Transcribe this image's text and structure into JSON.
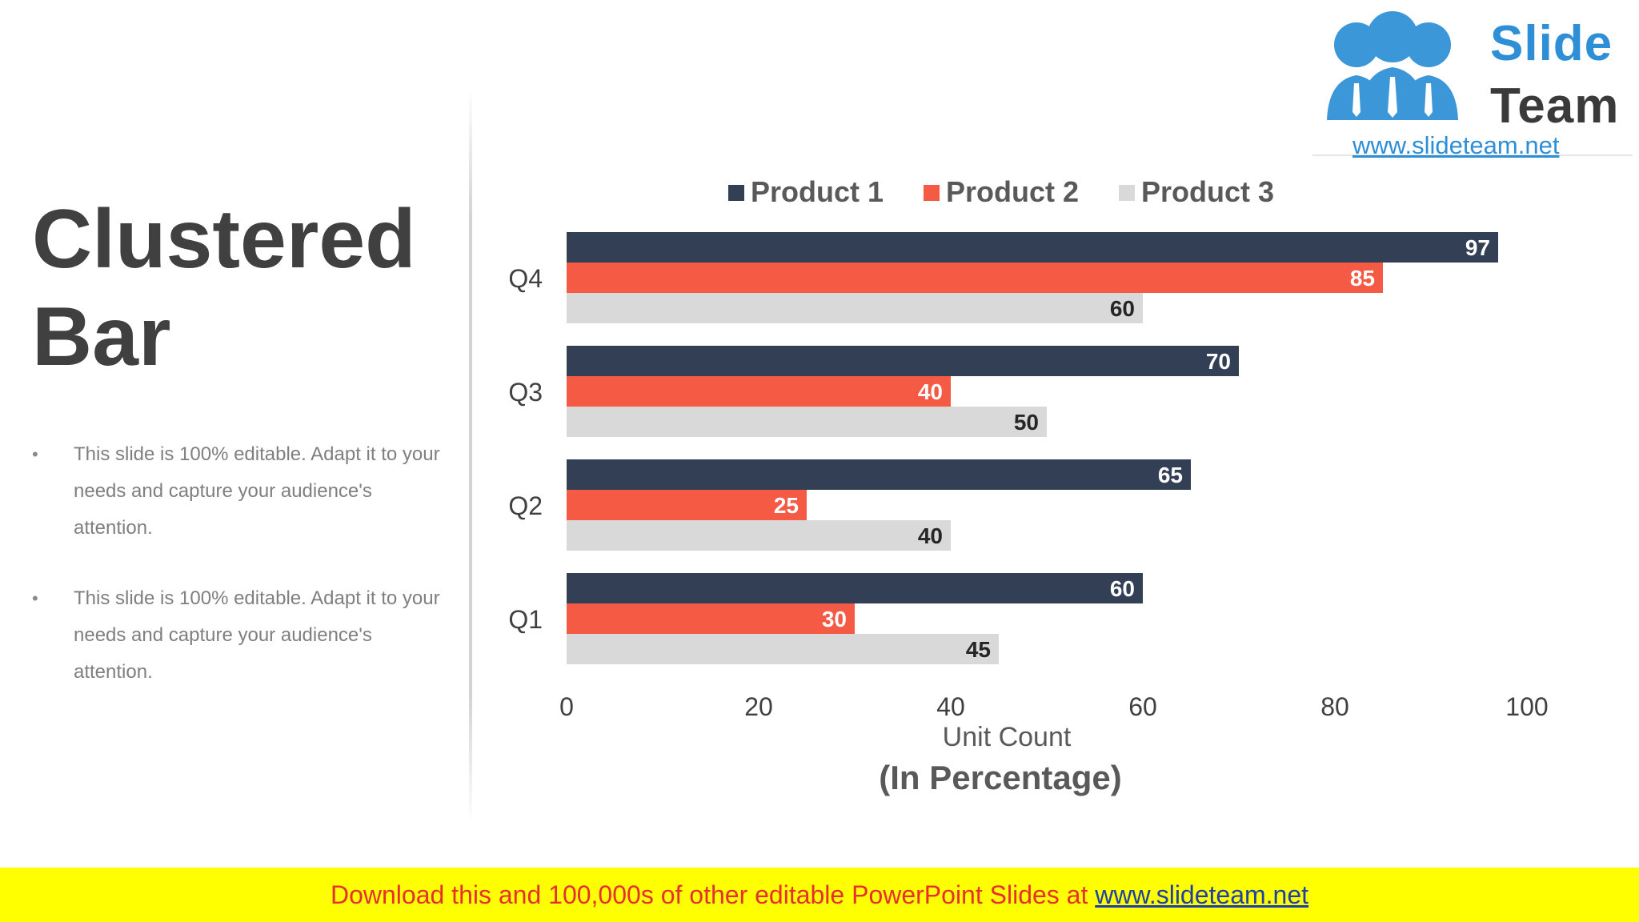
{
  "slide": {
    "title_line1": "Clustered",
    "title_line2": "Bar",
    "bullets": [
      "This slide is 100% editable. Adapt it to your needs and capture your audience's attention.",
      "This slide is 100% editable. Adapt it to your needs and capture your audience's attention."
    ]
  },
  "logo": {
    "word1": "Slide",
    "word2": "Team",
    "url": "www.slideteam.net"
  },
  "banner": {
    "text": "Download this and 100,000s of other editable PowerPoint Slides at ",
    "link": "www.slideteam.net"
  },
  "chart_data": {
    "type": "bar",
    "orientation": "horizontal",
    "categories": [
      "Q1",
      "Q2",
      "Q3",
      "Q4"
    ],
    "series": [
      {
        "name": "Product 1",
        "color": "#333f55",
        "values": [
          60,
          65,
          70,
          97
        ]
      },
      {
        "name": "Product 2",
        "color": "#f55a45",
        "values": [
          30,
          25,
          40,
          85
        ]
      },
      {
        "name": "Product 3",
        "color": "#d9d9d9",
        "values": [
          45,
          40,
          50,
          60
        ]
      }
    ],
    "x_ticks": [
      0,
      20,
      40,
      60,
      80,
      100
    ],
    "xlim": [
      0,
      100
    ],
    "xlabel": "Unit Count",
    "subtitle": "(In Percentage)",
    "legend_position": "top",
    "grid": false
  }
}
